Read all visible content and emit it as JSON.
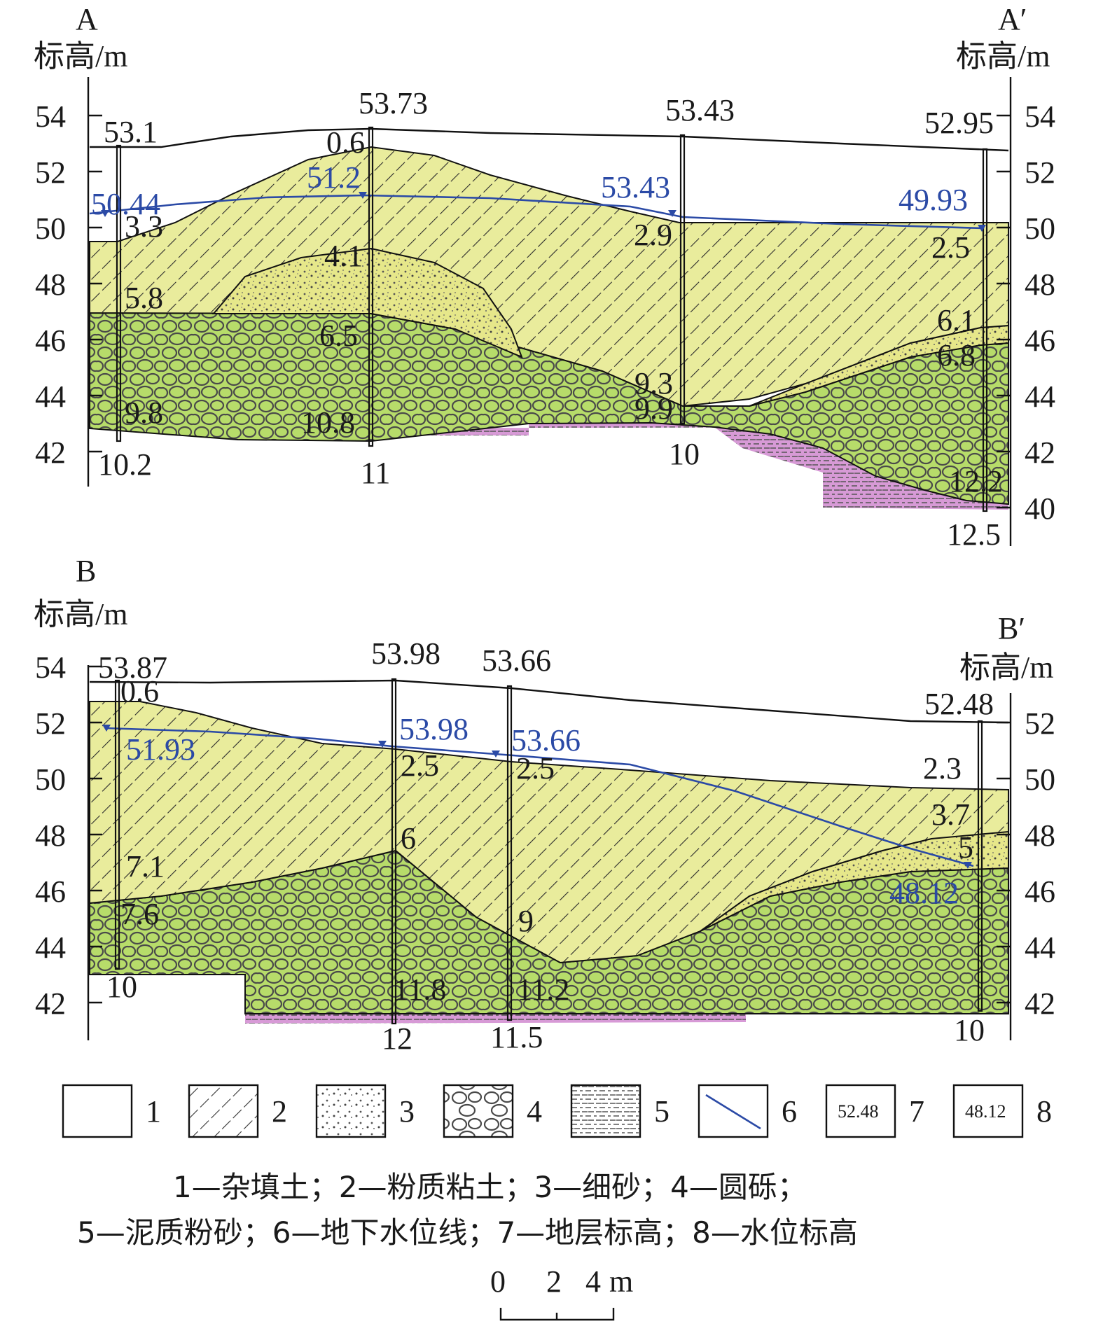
{
  "sectionA": {
    "start_letter": "A",
    "end_letter": "A′",
    "axis_label": "标高/m",
    "left_ticks": [
      "54",
      "52",
      "50",
      "48",
      "46",
      "44",
      "42"
    ],
    "right_ticks": [
      "54",
      "52",
      "50",
      "48",
      "46",
      "44",
      "42",
      "40"
    ],
    "labels": {
      "b1_top": "53.1",
      "b2_top": "53.73",
      "b3_top": "53.43",
      "b4_top": "52.95",
      "w1": "50.44",
      "w2": "51.2",
      "w3": "53.43",
      "w4": "49.93",
      "d_0_6": "0.6",
      "d_3_3": "3.3",
      "d_5_8": "5.8",
      "d_9_8": "9.8",
      "d_10_2": "10.2",
      "d_4_1": "4.1",
      "d_6_5": "6.5",
      "d_10_8": "10.8",
      "d_11": "11",
      "d_2_9": "2.9",
      "d_9_3": "9.3",
      "d_9_9": "9.9",
      "d_10": "10",
      "d_2_5": "2.5",
      "d_6_1": "6.1",
      "d_6_8": "6.8",
      "d_12_2": "12.2",
      "d_12_5": "12.5"
    }
  },
  "sectionB": {
    "start_letter": "B",
    "end_letter": "B′",
    "axis_label": "标高/m",
    "left_ticks": [
      "54",
      "52",
      "50",
      "48",
      "46",
      "44",
      "42"
    ],
    "right_ticks": [
      "52",
      "50",
      "48",
      "46",
      "44",
      "42"
    ],
    "labels": {
      "b1_top": "53.87",
      "b2_top": "53.98",
      "b3_top": "53.66",
      "b4_top": "52.48",
      "w1": "51.93",
      "w2": "53.98",
      "w3": "53.66",
      "w4": "48.12",
      "d_0_6": "0.6",
      "d_7_1": "7.1",
      "d_7_6": "7.6",
      "d_10a": "10",
      "d_2_5a": "2.5",
      "d_6": "6",
      "d_11_8": "11.8",
      "d_12": "12",
      "d_2_5b": "2.5",
      "d_9": "9",
      "d_11_2": "11.2",
      "d_11_5": "11.5",
      "d_2_3": "2.3",
      "d_3_7": "3.7",
      "d_5": "5",
      "d_10b": "10"
    }
  },
  "legend": {
    "items": [
      "1",
      "2",
      "3",
      "4",
      "5",
      "6",
      "7",
      "8"
    ],
    "box7": "52.48",
    "box8": "48.12",
    "caption_line1": "1—杂填土；2—粉质粘土；3—细砂；4—圆砾；",
    "caption_line2": "5—泥质粉砂；6—地下水位线；7—地层标高；8—水位标高"
  },
  "scale": {
    "t0": "0",
    "t2": "2",
    "t4": "4",
    "unit": "m"
  },
  "colors": {
    "clay": "#e9ec9c",
    "gravel": "#b7dc6a",
    "silt": "#d79ad6",
    "water": "#2b4aa6"
  }
}
